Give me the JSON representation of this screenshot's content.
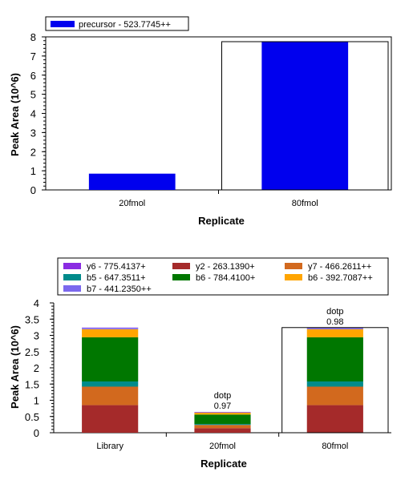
{
  "chart_data": [
    {
      "type": "bar",
      "xlabel": "Replicate",
      "ylabel": "Peak Area (10^6)",
      "ylim": [
        0,
        8
      ],
      "yticks": [
        "0",
        "1",
        "2",
        "3",
        "4",
        "5",
        "6",
        "7",
        "8"
      ],
      "legend_position": "top-left",
      "categories": [
        "20fmol",
        "80fmol"
      ],
      "series": [
        {
          "name": "precursor - 523.7745++",
          "color": "#0000ee",
          "values": [
            0.85,
            7.75
          ]
        }
      ],
      "grid": false
    },
    {
      "type": "bar",
      "stacked": true,
      "xlabel": "Replicate",
      "ylabel": "Peak Area (10^6)",
      "ylim": [
        0,
        4
      ],
      "yticks": [
        "0",
        "0.5",
        "1",
        "1.5",
        "2",
        "2.5",
        "3",
        "3.5",
        "4"
      ],
      "legend_position": "top",
      "categories": [
        "Library",
        "20fmol",
        "80fmol"
      ],
      "series": [
        {
          "name": "y2 - 263.1390+",
          "color": "#a52a2a",
          "values": [
            0.85,
            0.14,
            0.85
          ]
        },
        {
          "name": "y7 - 466.2611++",
          "color": "#d2691e",
          "values": [
            0.57,
            0.1,
            0.57
          ]
        },
        {
          "name": "b5 - 647.3511+",
          "color": "#008b8b",
          "values": [
            0.16,
            0.03,
            0.16
          ]
        },
        {
          "name": "b6 - 784.4100+",
          "color": "#007700",
          "values": [
            1.36,
            0.29,
            1.36
          ]
        },
        {
          "name": "b6 - 392.7087++",
          "color": "#ffa500",
          "values": [
            0.25,
            0.06,
            0.25
          ]
        },
        {
          "name": "b7 - 441.2350++",
          "color": "#7b68ee",
          "values": [
            0.04,
            0.01,
            0.04
          ]
        },
        {
          "name": "y6 - 775.4137+",
          "color": "#8a2be2",
          "values": [
            0.01,
            0.01,
            0.01
          ]
        }
      ],
      "legend_order": [
        "y6 - 775.4137+",
        "y2 - 263.1390+",
        "y7 - 466.2611++",
        "b5 - 647.3511+",
        "b6 - 784.4100+",
        "b6 - 392.7087++",
        "b7 - 441.2350++"
      ],
      "annotations": [
        {
          "category": "20fmol",
          "label": "dotp",
          "value": "0.97"
        },
        {
          "category": "80fmol",
          "label": "dotp",
          "value": "0.98"
        }
      ],
      "highlighted_category": "80fmol",
      "grid": false
    }
  ]
}
